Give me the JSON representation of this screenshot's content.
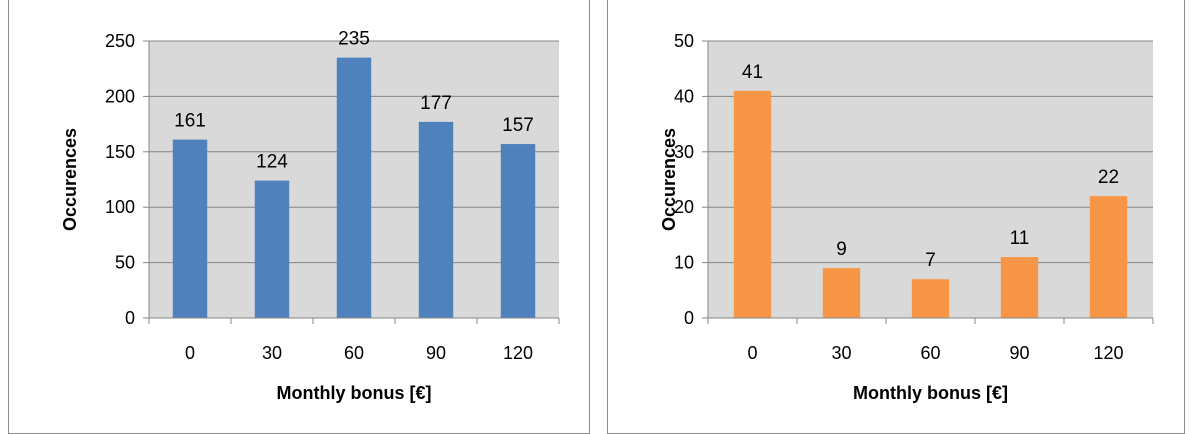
{
  "chart_data": [
    {
      "type": "bar",
      "categories": [
        "0",
        "30",
        "60",
        "90",
        "120"
      ],
      "values": [
        161,
        124,
        235,
        177,
        157
      ],
      "data_labels": [
        "161",
        "124",
        "235",
        "177",
        "157"
      ],
      "y_ticks": [
        "0",
        "50",
        "100",
        "150",
        "200",
        "250"
      ],
      "ylim": [
        0,
        250
      ],
      "xlabel": "Monthly bonus [€]",
      "ylabel": "Occurences",
      "color": "#4f81bd",
      "grid": true,
      "plot_background": "#d9d9d9"
    },
    {
      "type": "bar",
      "categories": [
        "0",
        "30",
        "60",
        "90",
        "120"
      ],
      "values": [
        41,
        9,
        7,
        11,
        22
      ],
      "data_labels": [
        "41",
        "9",
        "7",
        "11",
        "22"
      ],
      "y_ticks": [
        "0",
        "10",
        "20",
        "30",
        "40",
        "50"
      ],
      "ylim": [
        0,
        50
      ],
      "xlabel": "Monthly bonus [€]",
      "ylabel": "Occurences",
      "color": "#f79646",
      "grid": true,
      "plot_background": "#d9d9d9"
    }
  ]
}
